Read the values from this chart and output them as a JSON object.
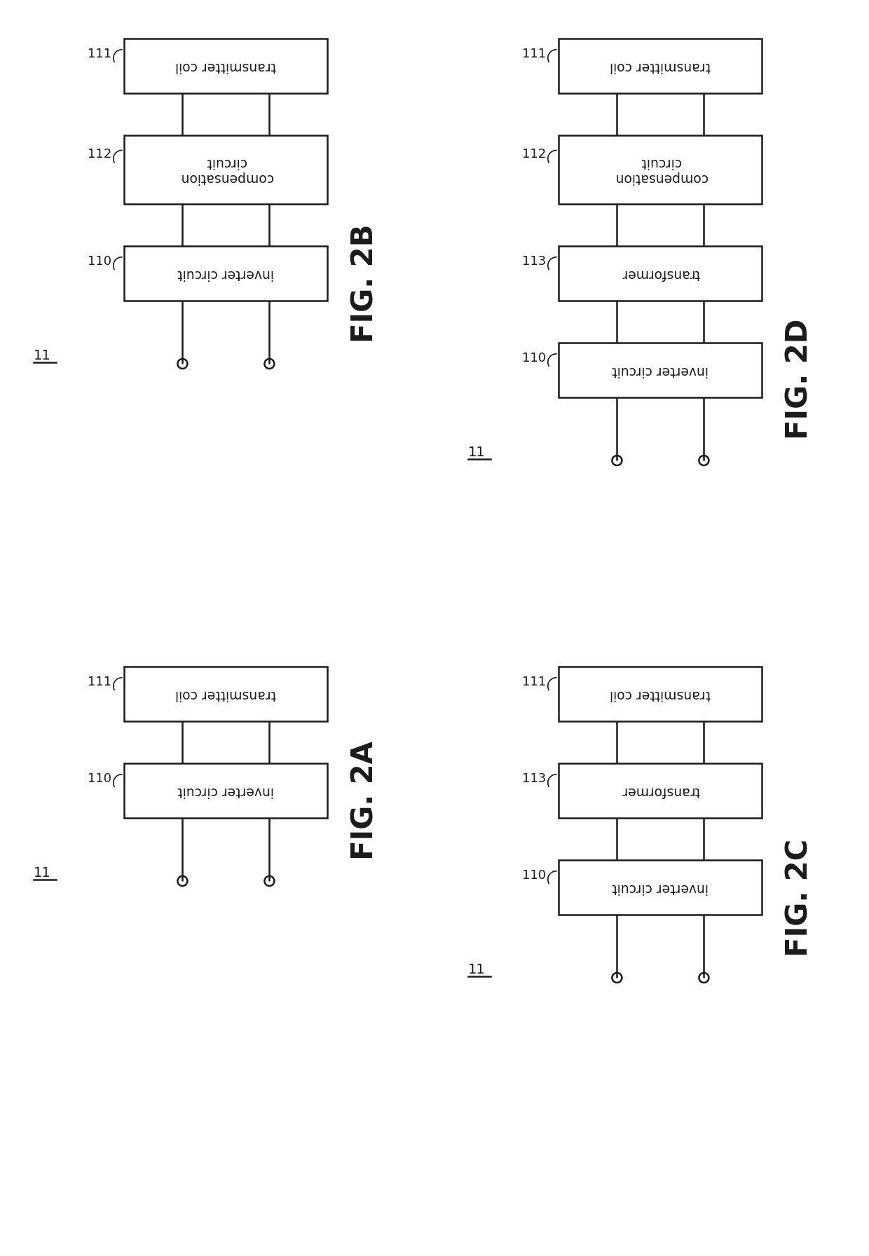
{
  "bg_color": "#ffffff",
  "line_color": "#1a1a1a",
  "box_edge_color": "#1a1a1a",
  "text_color": "#1a1a1a",
  "diagrams": [
    {
      "id": "2B",
      "label": "FIG. 2B",
      "panel_col": 0,
      "panel_row": 0,
      "boxes": [
        {
          "id": "111",
          "label": "transmitter coil"
        },
        {
          "id": "112",
          "label": "compensation\ncircuit"
        },
        {
          "id": "110",
          "label": "inverter circuit"
        }
      ]
    },
    {
      "id": "2D",
      "label": "FIG. 2D",
      "panel_col": 1,
      "panel_row": 0,
      "boxes": [
        {
          "id": "111",
          "label": "transmitter coil"
        },
        {
          "id": "112",
          "label": "compensation\ncircuit"
        },
        {
          "id": "113",
          "label": "transformer"
        },
        {
          "id": "110",
          "label": "inverter circuit"
        }
      ]
    },
    {
      "id": "2A",
      "label": "FIG. 2A",
      "panel_col": 0,
      "panel_row": 1,
      "boxes": [
        {
          "id": "111",
          "label": "transmitter coil"
        },
        {
          "id": "110",
          "label": "inverter circuit"
        }
      ]
    },
    {
      "id": "2C",
      "label": "FIG. 2C",
      "panel_col": 1,
      "panel_row": 1,
      "boxes": [
        {
          "id": "111",
          "label": "transmitter coil"
        },
        {
          "id": "113",
          "label": "transformer"
        },
        {
          "id": "110",
          "label": "inverter circuit"
        }
      ]
    }
  ]
}
